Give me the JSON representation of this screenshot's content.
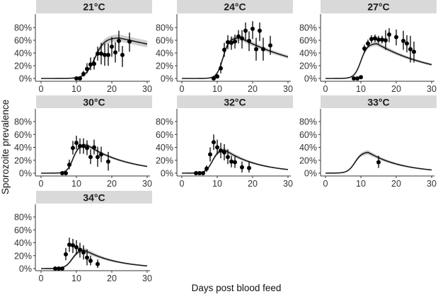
{
  "chart_data": {
    "type": "scatter",
    "title": "",
    "xlabel": "Days post blood feed",
    "ylabel": "Sporozoite prevalence",
    "xlim": [
      0,
      30
    ],
    "ylim": [
      0,
      0.9
    ],
    "x_ticks": [
      0,
      10,
      20,
      30
    ],
    "x_tick_labels": [
      "0",
      "10",
      "20",
      "30"
    ],
    "y_ticks": [
      0,
      0.2,
      0.4,
      0.6,
      0.8
    ],
    "y_tick_labels": [
      "0%",
      "20%",
      "40%",
      "60%",
      "80%"
    ],
    "grid": false,
    "legend": "none",
    "layout": "facet-wrap 3 columns",
    "colors": {
      "strip": "#d9d9d9",
      "points": "#000000",
      "curve": "#1a1a1a",
      "band": "#cfcfcf"
    },
    "panels": [
      {
        "label": "21°C",
        "observed": [
          {
            "x": 10,
            "y": 0.0,
            "lo": 0.0,
            "hi": 0.01
          },
          {
            "x": 11,
            "y": 0.0,
            "lo": 0.0,
            "hi": 0.01
          },
          {
            "x": 12,
            "y": 0.07,
            "lo": 0.03,
            "hi": 0.12
          },
          {
            "x": 13,
            "y": 0.15,
            "lo": 0.08,
            "hi": 0.24
          },
          {
            "x": 14,
            "y": 0.22,
            "lo": 0.13,
            "hi": 0.33
          },
          {
            "x": 15,
            "y": 0.23,
            "lo": 0.14,
            "hi": 0.33
          },
          {
            "x": 16,
            "y": 0.39,
            "lo": 0.28,
            "hi": 0.5
          },
          {
            "x": 17,
            "y": 0.39,
            "lo": 0.22,
            "hi": 0.56
          },
          {
            "x": 18,
            "y": 0.37,
            "lo": 0.2,
            "hi": 0.55
          },
          {
            "x": 19,
            "y": 0.37,
            "lo": 0.2,
            "hi": 0.55
          },
          {
            "x": 20,
            "y": 0.5,
            "lo": 0.34,
            "hi": 0.65
          },
          {
            "x": 21,
            "y": 0.41,
            "lo": 0.25,
            "hi": 0.57
          },
          {
            "x": 22,
            "y": 0.59,
            "lo": 0.42,
            "hi": 0.75
          },
          {
            "x": 23,
            "y": 0.37,
            "lo": 0.18,
            "hi": 0.51
          },
          {
            "x": 25,
            "y": 0.58,
            "lo": 0.42,
            "hi": 0.72
          }
        ],
        "model": {
          "onset": 15.2,
          "steep": 0.75,
          "peak": 0.64,
          "peak_day": 22,
          "decay": 0.021,
          "band": 0.055
        }
      },
      {
        "label": "24°C",
        "observed": [
          {
            "x": 9,
            "y": 0.0,
            "lo": 0.0,
            "hi": 0.02
          },
          {
            "x": 10,
            "y": 0.03,
            "lo": 0.0,
            "hi": 0.07
          },
          {
            "x": 11,
            "y": 0.16,
            "lo": 0.08,
            "hi": 0.25
          },
          {
            "x": 12,
            "y": 0.45,
            "lo": 0.34,
            "hi": 0.56
          },
          {
            "x": 13,
            "y": 0.57,
            "lo": 0.46,
            "hi": 0.68
          },
          {
            "x": 14,
            "y": 0.56,
            "lo": 0.45,
            "hi": 0.66
          },
          {
            "x": 15,
            "y": 0.58,
            "lo": 0.47,
            "hi": 0.69
          },
          {
            "x": 16,
            "y": 0.66,
            "lo": 0.55,
            "hi": 0.76
          },
          {
            "x": 17,
            "y": 0.63,
            "lo": 0.47,
            "hi": 0.76
          },
          {
            "x": 18,
            "y": 0.75,
            "lo": 0.59,
            "hi": 0.88
          },
          {
            "x": 19,
            "y": 0.59,
            "lo": 0.43,
            "hi": 0.74
          },
          {
            "x": 20,
            "y": 0.78,
            "lo": 0.62,
            "hi": 0.9
          },
          {
            "x": 21,
            "y": 0.46,
            "lo": 0.28,
            "hi": 0.64
          },
          {
            "x": 22,
            "y": 0.75,
            "lo": 0.59,
            "hi": 0.88
          },
          {
            "x": 23,
            "y": 0.46,
            "lo": 0.28,
            "hi": 0.64
          },
          {
            "x": 25,
            "y": 0.52,
            "lo": 0.37,
            "hi": 0.67
          }
        ],
        "model": {
          "onset": 11.6,
          "steep": 1.15,
          "peak": 0.64,
          "peak_day": 16.5,
          "decay": 0.047,
          "band": 0.04
        }
      },
      {
        "label": "27°C",
        "observed": [
          {
            "x": 8,
            "y": 0.0,
            "lo": 0.0,
            "hi": 0.02
          },
          {
            "x": 9,
            "y": 0.0,
            "lo": 0.0,
            "hi": 0.02
          },
          {
            "x": 10,
            "y": 0.02,
            "lo": 0.0,
            "hi": 0.04
          },
          {
            "x": 11,
            "y": 0.47,
            "lo": 0.41,
            "hi": 0.53
          },
          {
            "x": 12,
            "y": 0.55,
            "lo": 0.49,
            "hi": 0.61
          },
          {
            "x": 13,
            "y": 0.62,
            "lo": 0.56,
            "hi": 0.68
          },
          {
            "x": 14,
            "y": 0.63,
            "lo": 0.57,
            "hi": 0.69
          },
          {
            "x": 15,
            "y": 0.61,
            "lo": 0.55,
            "hi": 0.67
          },
          {
            "x": 16,
            "y": 0.61,
            "lo": 0.55,
            "hi": 0.67
          },
          {
            "x": 17,
            "y": 0.6,
            "lo": 0.45,
            "hi": 0.76
          },
          {
            "x": 18,
            "y": 0.69,
            "lo": 0.57,
            "hi": 0.79
          },
          {
            "x": 20,
            "y": 0.65,
            "lo": 0.52,
            "hi": 0.77
          },
          {
            "x": 22,
            "y": 0.59,
            "lo": 0.45,
            "hi": 0.75
          },
          {
            "x": 23,
            "y": 0.55,
            "lo": 0.41,
            "hi": 0.68
          },
          {
            "x": 24,
            "y": 0.46,
            "lo": 0.25,
            "hi": 0.67
          },
          {
            "x": 25,
            "y": 0.42,
            "lo": 0.25,
            "hi": 0.58
          }
        ],
        "model": {
          "onset": 10.0,
          "steep": 1.1,
          "peak": 0.55,
          "peak_day": 14.5,
          "decay": 0.06,
          "band": 0.035
        }
      },
      {
        "label": "30°C",
        "observed": [
          {
            "x": 6,
            "y": 0.0,
            "lo": 0.0,
            "hi": 0.01
          },
          {
            "x": 7,
            "y": 0.0,
            "lo": 0.0,
            "hi": 0.01
          },
          {
            "x": 8,
            "y": 0.13,
            "lo": 0.06,
            "hi": 0.21
          },
          {
            "x": 9,
            "y": 0.39,
            "lo": 0.29,
            "hi": 0.5
          },
          {
            "x": 10,
            "y": 0.47,
            "lo": 0.37,
            "hi": 0.58
          },
          {
            "x": 11,
            "y": 0.42,
            "lo": 0.3,
            "hi": 0.54
          },
          {
            "x": 12,
            "y": 0.42,
            "lo": 0.3,
            "hi": 0.54
          },
          {
            "x": 13,
            "y": 0.39,
            "lo": 0.28,
            "hi": 0.51
          },
          {
            "x": 14,
            "y": 0.25,
            "lo": 0.14,
            "hi": 0.37
          },
          {
            "x": 15,
            "y": 0.4,
            "lo": 0.29,
            "hi": 0.52
          },
          {
            "x": 16,
            "y": 0.25,
            "lo": 0.1,
            "hi": 0.41
          },
          {
            "x": 17,
            "y": 0.29,
            "lo": 0.17,
            "hi": 0.41
          },
          {
            "x": 19,
            "y": 0.18,
            "lo": 0.04,
            "hi": 0.33
          }
        ],
        "model": {
          "onset": 9.0,
          "steep": 1.2,
          "peak": 0.44,
          "peak_day": 13,
          "decay": 0.085,
          "band": 0.03
        }
      },
      {
        "label": "32°C",
        "observed": [
          {
            "x": 4,
            "y": 0.0,
            "lo": 0.0,
            "hi": 0.01
          },
          {
            "x": 5,
            "y": 0.0,
            "lo": 0.0,
            "hi": 0.01
          },
          {
            "x": 6,
            "y": 0.0,
            "lo": 0.0,
            "hi": 0.01
          },
          {
            "x": 7,
            "y": 0.07,
            "lo": 0.02,
            "hi": 0.12
          },
          {
            "x": 8,
            "y": 0.29,
            "lo": 0.18,
            "hi": 0.4
          },
          {
            "x": 9,
            "y": 0.48,
            "lo": 0.36,
            "hi": 0.6
          },
          {
            "x": 10,
            "y": 0.4,
            "lo": 0.29,
            "hi": 0.52
          },
          {
            "x": 11,
            "y": 0.35,
            "lo": 0.23,
            "hi": 0.47
          },
          {
            "x": 12,
            "y": 0.32,
            "lo": 0.2,
            "hi": 0.45
          },
          {
            "x": 13,
            "y": 0.25,
            "lo": 0.14,
            "hi": 0.37
          },
          {
            "x": 14,
            "y": 0.18,
            "lo": 0.09,
            "hi": 0.27
          },
          {
            "x": 15,
            "y": 0.17,
            "lo": 0.08,
            "hi": 0.26
          },
          {
            "x": 17,
            "y": 0.09,
            "lo": 0.01,
            "hi": 0.18
          },
          {
            "x": 19,
            "y": 0.08,
            "lo": 0.01,
            "hi": 0.18
          }
        ],
        "model": {
          "onset": 8.6,
          "steep": 1.1,
          "peak": 0.37,
          "peak_day": 12,
          "decay": 0.105,
          "band": 0.035
        }
      },
      {
        "label": "33°C",
        "observed": [
          {
            "x": 15,
            "y": 0.17,
            "lo": 0.08,
            "hi": 0.27
          }
        ],
        "model": {
          "onset": 8.3,
          "steep": 1.0,
          "peak": 0.33,
          "peak_day": 12,
          "decay": 0.105,
          "band": 0.035
        }
      },
      {
        "label": "34°C",
        "observed": [
          {
            "x": 4,
            "y": 0.0,
            "lo": 0.0,
            "hi": 0.01
          },
          {
            "x": 5,
            "y": 0.0,
            "lo": 0.0,
            "hi": 0.01
          },
          {
            "x": 6,
            "y": 0.0,
            "lo": 0.0,
            "hi": 0.01
          },
          {
            "x": 7,
            "y": 0.22,
            "lo": 0.13,
            "hi": 0.32
          },
          {
            "x": 8,
            "y": 0.37,
            "lo": 0.26,
            "hi": 0.48
          },
          {
            "x": 9,
            "y": 0.36,
            "lo": 0.24,
            "hi": 0.46
          },
          {
            "x": 10,
            "y": 0.33,
            "lo": 0.22,
            "hi": 0.44
          },
          {
            "x": 11,
            "y": 0.29,
            "lo": 0.17,
            "hi": 0.4
          },
          {
            "x": 12,
            "y": 0.25,
            "lo": 0.14,
            "hi": 0.36
          },
          {
            "x": 13,
            "y": 0.17,
            "lo": 0.05,
            "hi": 0.3
          },
          {
            "x": 14,
            "y": 0.12,
            "lo": 0.05,
            "hi": 0.2
          },
          {
            "x": 16,
            "y": 0.07,
            "lo": 0.01,
            "hi": 0.14
          }
        ],
        "model": {
          "onset": 8.8,
          "steep": 1.0,
          "peak": 0.3,
          "peak_day": 12,
          "decay": 0.11,
          "band": 0.04
        }
      }
    ]
  }
}
